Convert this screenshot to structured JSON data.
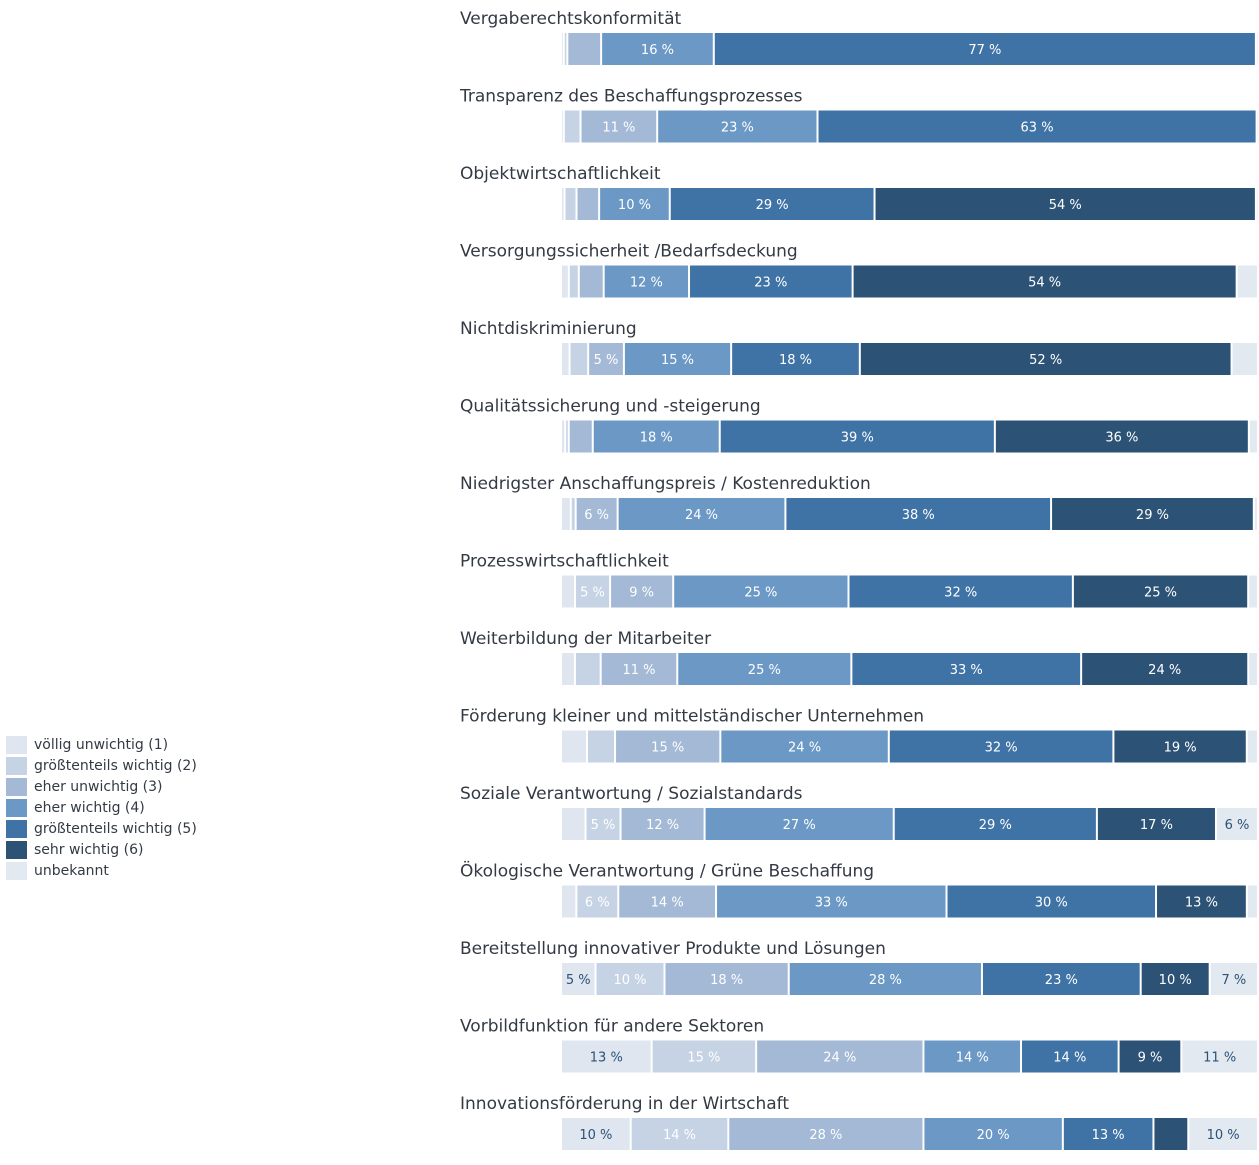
{
  "chart_data": {
    "type": "bar",
    "stacked": true,
    "orientation": "horizontal",
    "value_unit": "%",
    "category_order": [
      "völlig unwichtig (1)",
      "größtenteils wichtig (2)",
      "eher unwichtig (3)",
      "eher wichtig (4)",
      "größtenteils wichtig (5)",
      "sehr wichtig (6)",
      "unbekannt"
    ],
    "legend": [
      {
        "label": "völlig unwichtig (1)",
        "color": "#dfe6ef"
      },
      {
        "label": "größtenteils wichtig (2)",
        "color": "#c5d3e4"
      },
      {
        "label": "eher unwichtig (3)",
        "color": "#a3b9d6"
      },
      {
        "label": "eher wichtig (4)",
        "color": "#6b98c5"
      },
      {
        "label": "größtenteils wichtig (5)",
        "color": "#3f73a6"
      },
      {
        "label": "sehr wichtig (6)",
        "color": "#2c5276"
      },
      {
        "label": "unbekannt",
        "color": "#e3e9f1"
      }
    ],
    "rows": [
      {
        "label": "Vergaberechtskonformität",
        "values": [
          0.4,
          0.5,
          4.8,
          16,
          77,
          0,
          0.3
        ],
        "labels": [
          "",
          "",
          "",
          "16 %",
          "77 %",
          "",
          ""
        ]
      },
      {
        "label": "Transparenz des Beschaffungsprozesses",
        "values": [
          0.4,
          2.4,
          11,
          23,
          63,
          0,
          0.2
        ],
        "labels": [
          "",
          "",
          "11 %",
          "23 %",
          "63 %",
          "",
          ""
        ]
      },
      {
        "label": "Objektwirtschaftlichkeit",
        "values": [
          0.5,
          1.7,
          3.2,
          10,
          29,
          54,
          0.3
        ],
        "labels": [
          "",
          "",
          "",
          "10 %",
          "29 %",
          "54 %",
          ""
        ]
      },
      {
        "label": "Versorgungssicherheit /Bedarfsdeckung",
        "values": [
          1.1,
          1.4,
          3.5,
          12,
          23,
          54,
          3
        ],
        "labels": [
          "",
          "",
          "",
          "12 %",
          "23 %",
          "54 %",
          ""
        ]
      },
      {
        "label": "Nichtdiskriminierung",
        "values": [
          1.2,
          2.6,
          5,
          15,
          18,
          52,
          3.7
        ],
        "labels": [
          "",
          "",
          "5 %",
          "15 %",
          "18 %",
          "52 %",
          ""
        ]
      },
      {
        "label": "Qualitätssicherung und -steigerung",
        "values": [
          0.6,
          0.5,
          3.4,
          18,
          39,
          36,
          1.3
        ],
        "labels": [
          "",
          "",
          "",
          "18 %",
          "39 %",
          "36 %",
          ""
        ]
      },
      {
        "label": "Niedrigster Anschaffungspreis / Kostenreduktion",
        "values": [
          1.4,
          0.7,
          6,
          24,
          38,
          29,
          0.6
        ],
        "labels": [
          "",
          "",
          "6 %",
          "24 %",
          "38 %",
          "29 %",
          ""
        ]
      },
      {
        "label": "Prozesswirtschaftlichkeit",
        "values": [
          2,
          5,
          9,
          25,
          32,
          25,
          1.4
        ],
        "labels": [
          "",
          "5 %",
          "9 %",
          "25 %",
          "32 %",
          "25 %",
          ""
        ]
      },
      {
        "label": "Weiterbildung der Mitarbeiter",
        "values": [
          2,
          3.7,
          11,
          25,
          33,
          24,
          1.4
        ],
        "labels": [
          "",
          "",
          "11 %",
          "25 %",
          "33 %",
          "24 %",
          ""
        ]
      },
      {
        "label": "Förderung kleiner und mittelständischer Unternehmen",
        "values": [
          3.7,
          4,
          15,
          24,
          32,
          19,
          1.6
        ],
        "labels": [
          "",
          "",
          "15 %",
          "24 %",
          "32 %",
          "19 %",
          ""
        ]
      },
      {
        "label": "Soziale Verantwortung / Sozialstandards",
        "values": [
          3.5,
          5,
          12,
          27,
          29,
          17,
          6
        ],
        "labels": [
          "",
          "5 %",
          "12 %",
          "27 %",
          "29 %",
          "17 %",
          "6 %"
        ]
      },
      {
        "label": "Ökologische Verantwortung / Grüne Beschaffung",
        "values": [
          2.2,
          6,
          14,
          33,
          30,
          13,
          1.6
        ],
        "labels": [
          "",
          "6 %",
          "14 %",
          "33 %",
          "30 %",
          "13 %",
          ""
        ]
      },
      {
        "label": "Bereitstellung innovativer Produkte und Lösungen",
        "values": [
          5,
          10,
          18,
          28,
          23,
          10,
          7
        ],
        "labels": [
          "5 %",
          "10 %",
          "18 %",
          "28 %",
          "23 %",
          "10 %",
          "7 %"
        ]
      },
      {
        "label": "Vorbildfunktion für andere Sektoren",
        "values": [
          13,
          15,
          24,
          14,
          14,
          9,
          11
        ],
        "labels": [
          "13 %",
          "15 %",
          "24 %",
          "14 %",
          "14 %",
          "9 %",
          "11 %"
        ]
      },
      {
        "label": "Innovationsförderung in der Wirtschaft",
        "values": [
          10,
          14,
          28,
          20,
          13,
          5,
          10
        ],
        "labels": [
          "10 %",
          "14 %",
          "28 %",
          "20 %",
          "13 %",
          "",
          "10 %"
        ]
      }
    ]
  }
}
